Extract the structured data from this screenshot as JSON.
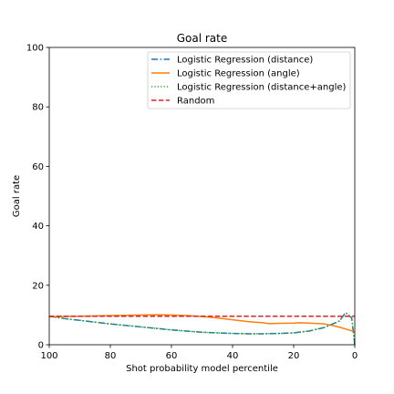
{
  "chart_data": {
    "type": "line",
    "title": "Goal rate",
    "xlabel": "Shot probability model percentile",
    "ylabel": "Goal rate",
    "xlim": [
      100,
      0
    ],
    "ylim": [
      0,
      100
    ],
    "x_ticks": [
      100,
      80,
      60,
      40,
      20,
      0
    ],
    "y_ticks": [
      0,
      20,
      40,
      60,
      80,
      100
    ],
    "x_tick_labels": [
      "100",
      "80",
      "60",
      "40",
      "20",
      "0"
    ],
    "y_tick_labels": [
      "0",
      "20",
      "40",
      "60",
      "80",
      "100"
    ],
    "grid": false,
    "legend_position": "top-right",
    "series": [
      {
        "name": "Logistic Regression (distance)",
        "color": "#1f77b4",
        "dash": "dashdot",
        "x": [
          100,
          95,
          90,
          85,
          80,
          75,
          70,
          65,
          60,
          55,
          50,
          45,
          40,
          35,
          30,
          25,
          20,
          15,
          10,
          5,
          3,
          1,
          0
        ],
        "y": [
          9.6,
          8.8,
          8.2,
          7.6,
          7.0,
          6.5,
          6.0,
          5.5,
          5.0,
          4.6,
          4.2,
          4.0,
          3.8,
          3.7,
          3.7,
          3.8,
          4.0,
          4.6,
          5.8,
          8.0,
          10.8,
          9.0,
          0
        ]
      },
      {
        "name": "Logistic Regression (angle)",
        "color": "#ff7f0e",
        "dash": "solid",
        "x": [
          100,
          95,
          90,
          85,
          80,
          75,
          70,
          65,
          60,
          55,
          50,
          45,
          40,
          35,
          30,
          28,
          25,
          20,
          18,
          15,
          10,
          7,
          5,
          2,
          0
        ],
        "y": [
          9.4,
          9.5,
          9.6,
          9.7,
          9.8,
          9.9,
          10.0,
          10.1,
          10.0,
          9.8,
          9.5,
          9.0,
          8.4,
          7.8,
          7.4,
          7.1,
          7.2,
          7.3,
          7.4,
          7.3,
          7.0,
          6.4,
          5.9,
          5.0,
          4.3
        ]
      },
      {
        "name": "Logistic Regression (distance+angle)",
        "color": "#2ca02c",
        "dash": "dotted",
        "x": [
          100,
          95,
          90,
          85,
          80,
          75,
          70,
          65,
          60,
          55,
          50,
          45,
          40,
          35,
          30,
          25,
          20,
          15,
          10,
          5,
          3,
          1,
          0
        ],
        "y": [
          9.6,
          8.8,
          8.2,
          7.6,
          7.0,
          6.5,
          6.0,
          5.5,
          5.0,
          4.6,
          4.2,
          4.0,
          3.8,
          3.7,
          3.7,
          3.8,
          4.0,
          4.6,
          5.8,
          8.0,
          10.8,
          9.0,
          0
        ]
      },
      {
        "name": "Random",
        "color": "#d62728",
        "dash": "dashed",
        "x": [
          100,
          0
        ],
        "y": [
          9.6,
          9.6
        ]
      }
    ]
  }
}
